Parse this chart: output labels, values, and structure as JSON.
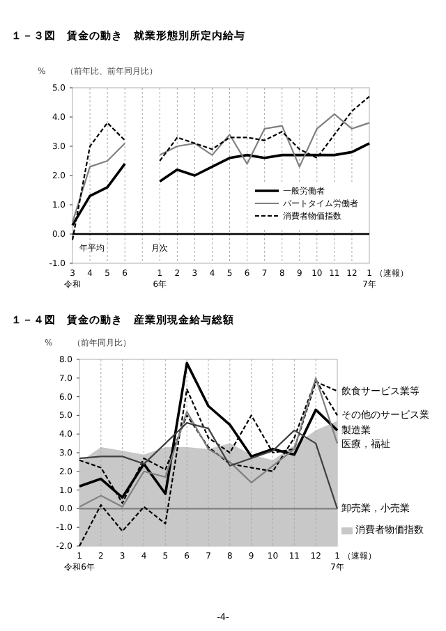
{
  "chart_data": [
    {
      "type": "line",
      "title": "１－３図　賃金の動き　就業形態別所定内給与",
      "ylabel": "%",
      "subtitle": "（前年比、前年同月比）",
      "categories": [
        "3\n令和",
        "4",
        "5",
        "6",
        null,
        "1\n6年",
        "2",
        "3",
        "4",
        "5",
        "6",
        "7",
        "8",
        "9",
        "10",
        "11",
        "12",
        "1\n7年"
      ],
      "series": [
        {
          "name": "一般労働者",
          "color": "#000000",
          "line_style": "solid",
          "values": [
            0.3,
            1.3,
            1.6,
            2.4,
            null,
            1.8,
            2.2,
            2.0,
            2.3,
            2.6,
            2.7,
            2.6,
            2.7,
            2.7,
            2.7,
            2.7,
            2.8,
            3.1
          ]
        },
        {
          "name": "パートタイム労働者",
          "color": "#808080",
          "line_style": "solid",
          "values": [
            0.4,
            2.3,
            2.5,
            3.1,
            null,
            2.7,
            3.0,
            3.1,
            2.7,
            3.4,
            2.4,
            3.6,
            3.7,
            2.3,
            3.6,
            4.1,
            3.6,
            3.8
          ]
        },
        {
          "name": "消費者物価指数",
          "color": "#000000",
          "line_style": "dashed",
          "values": [
            -0.2,
            3.0,
            3.8,
            3.2,
            null,
            2.5,
            3.3,
            3.1,
            2.9,
            3.3,
            3.3,
            3.2,
            3.5,
            2.9,
            2.6,
            3.4,
            4.2,
            4.7
          ]
        }
      ],
      "ylim": [
        -1,
        5
      ],
      "yticks": [
        {
          "value": -1,
          "label": "-1.0"
        },
        {
          "value": 0,
          "label": "0.0"
        },
        {
          "value": 1,
          "label": "1.0"
        },
        {
          "value": 2,
          "label": "2.0"
        },
        {
          "value": 3,
          "label": "3.0"
        },
        {
          "value": 4,
          "label": "4.0"
        },
        {
          "value": 5,
          "label": "5.0"
        }
      ],
      "grid": "x",
      "legend": "bottom right",
      "ref_lines": [
        {
          "axis": "y",
          "value": 0,
          "color": "#000000"
        }
      ],
      "annotations": [
        "年平均",
        "月次",
        "（速報）"
      ]
    },
    {
      "type": "line",
      "title": "１－４図　賃金の動き　産業別現金給与総額",
      "ylabel": "%",
      "subtitle": "（前年同月比）",
      "categories": [
        "1\n令和6年",
        "2",
        "3",
        "4",
        "5",
        "6",
        "7",
        "8",
        "9",
        "10",
        "11",
        "12",
        "1\n7年"
      ],
      "series": [
        {
          "name": "消費者物価指数",
          "type": "area",
          "color": "#c8c8c8",
          "values": [
            2.5,
            3.3,
            3.1,
            2.9,
            3.3,
            3.3,
            3.2,
            3.5,
            2.9,
            2.6,
            3.4,
            4.2,
            4.7
          ]
        },
        {
          "name": "飲食サービス業等",
          "color": "#000000",
          "line_style": "dashed",
          "values": [
            -2.0,
            0.2,
            -1.2,
            0.1,
            -0.8,
            6.4,
            3.8,
            3.0,
            5.0,
            3.0,
            3.2,
            6.8,
            6.3
          ]
        },
        {
          "name": "その他のサービス業",
          "color": "#000000",
          "line_style": "dashed",
          "values": [
            2.6,
            2.2,
            0.3,
            2.7,
            2.1,
            5.0,
            3.3,
            2.4,
            2.2,
            2.0,
            3.8,
            6.9,
            5.0
          ]
        },
        {
          "name": "製造業",
          "color": "#000000",
          "line_style": "solid",
          "values": [
            1.2,
            1.6,
            0.6,
            2.4,
            0.8,
            7.8,
            5.5,
            4.5,
            2.8,
            3.2,
            2.9,
            5.3,
            4.2
          ]
        },
        {
          "name": "医療，福祉",
          "color": "#808080",
          "line_style": "solid",
          "values": [
            0.1,
            0.7,
            0.1,
            2.0,
            1.7,
            5.2,
            3.2,
            2.5,
            1.4,
            2.3,
            3.2,
            7.0,
            3.5
          ]
        },
        {
          "name": "卸売業，小売業",
          "color": "#404040",
          "line_style": "solid",
          "values": [
            2.7,
            2.8,
            2.8,
            2.4,
            3.5,
            4.6,
            4.3,
            2.3,
            2.7,
            3.1,
            4.2,
            3.5,
            0.0
          ]
        }
      ],
      "ylim": [
        -2,
        8
      ],
      "yticks": [
        {
          "value": -2,
          "label": "-2.0"
        },
        {
          "value": -1,
          "label": "-1.0"
        },
        {
          "value": 0,
          "label": "0.0"
        },
        {
          "value": 1,
          "label": "1.0"
        },
        {
          "value": 2,
          "label": "2.0"
        },
        {
          "value": 3,
          "label": "3.0"
        },
        {
          "value": 4,
          "label": "4.0"
        },
        {
          "value": 5,
          "label": "5.0"
        },
        {
          "value": 6,
          "label": "6.0"
        },
        {
          "value": 7,
          "label": "7.0"
        },
        {
          "value": 8,
          "label": "8.0"
        }
      ],
      "grid": "x",
      "legend": "right",
      "ref_lines": [
        {
          "axis": "y",
          "value": 0,
          "color": "#808080"
        }
      ],
      "bands": [
        {
          "axis": "y",
          "from": -2,
          "to": 0,
          "color": "#c8c8c8"
        }
      ],
      "annotations": [
        "（速報）",
        "-4-"
      ]
    }
  ]
}
